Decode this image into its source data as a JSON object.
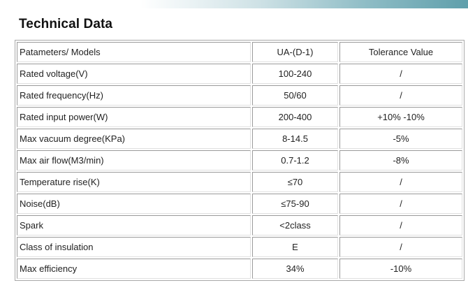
{
  "title": "Technical Data",
  "table": {
    "header": [
      "Patameters/ Models",
      "UA-(D-1)",
      "Tolerance Value"
    ],
    "rows": [
      {
        "parameter": "Rated voltage(V)",
        "value": "100-240",
        "tolerance": "/"
      },
      {
        "parameter": "Rated frequency(Hz)",
        "value": "50/60",
        "tolerance": "/"
      },
      {
        "parameter": "Rated input power(W)",
        "value": "200-400",
        "tolerance": "+10% -10%"
      },
      {
        "parameter": "Max vacuum degree(KPa)",
        "value": "8-14.5",
        "tolerance": "-5%"
      },
      {
        "parameter": "Max air flow(M3/min)",
        "value": "0.7-1.2",
        "tolerance": "-8%"
      },
      {
        "parameter": "Temperature rise(K)",
        "value": "≤70",
        "tolerance": "/"
      },
      {
        "parameter": "Noise(dB)",
        "value": "≤75-90",
        "tolerance": "/"
      },
      {
        "parameter": "Spark",
        "value": "<2class",
        "tolerance": "/"
      },
      {
        "parameter": "Class of insulation",
        "value": "E",
        "tolerance": "/"
      },
      {
        "parameter": "Max efficiency",
        "value": "34%",
        "tolerance": "-10%"
      }
    ]
  }
}
